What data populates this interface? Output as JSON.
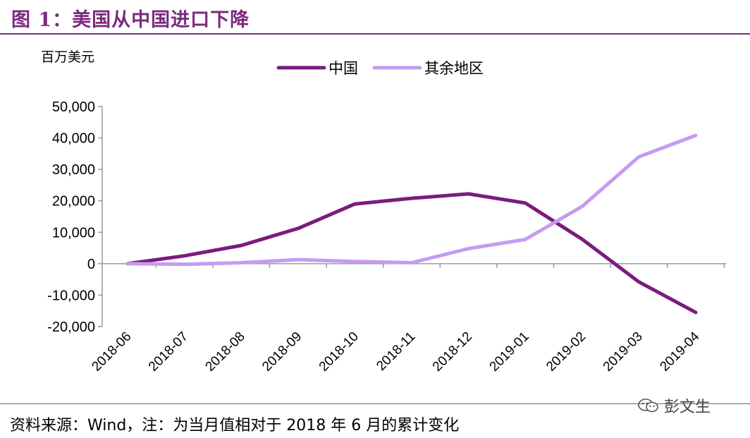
{
  "figure": {
    "title": "图 1：美国从中国进口下降",
    "source_note": "资料来源：Wind，注：为当月值相对于 2018 年 6 月的累计变化",
    "watermark": "彭文生"
  },
  "colors": {
    "title": "#7b2a7e",
    "series_china": "#7b1b7e",
    "series_rest": "#c59cf0",
    "axis": "#9a9a9a"
  },
  "chart_data": {
    "type": "line",
    "ylabel": "百万美元",
    "categories": [
      "2018-06",
      "2018-07",
      "2018-08",
      "2018-09",
      "2018-10",
      "2018-11",
      "2018-12",
      "2019-01",
      "2019-02",
      "2019-03",
      "2019-04"
    ],
    "ylim": [
      -20000,
      50000
    ],
    "yticks": [
      -20000,
      -10000,
      0,
      10000,
      20000,
      30000,
      40000,
      50000
    ],
    "ytick_labels": [
      "-20,000",
      "-10,000",
      "0",
      "10,000",
      "20,000",
      "30,000",
      "40,000",
      "50,000"
    ],
    "legend_position": "top-center",
    "series": [
      {
        "name": "中国",
        "color_key": "series_china",
        "values": [
          0,
          2500,
          5800,
          11200,
          19000,
          20800,
          22200,
          19300,
          7800,
          -5800,
          -15500
        ]
      },
      {
        "name": "其余地区",
        "color_key": "series_rest",
        "values": [
          0,
          -200,
          300,
          1300,
          700,
          300,
          4800,
          7700,
          18200,
          34000,
          40800
        ]
      }
    ]
  }
}
